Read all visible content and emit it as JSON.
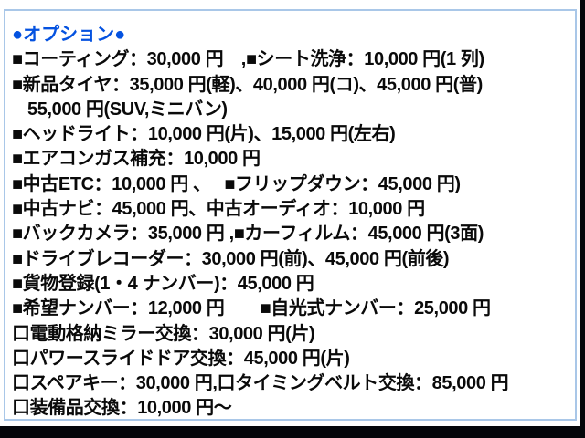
{
  "colors": {
    "header_color": "#0452e0",
    "text_color": "#0a0a0a",
    "border_color": "#a9c7e8",
    "paper_color": "#ffffff",
    "frame_color": "#05060a"
  },
  "header": {
    "text": "●オプション●"
  },
  "lines": [
    "■コーティング：30,000 円　,■シート洗浄：10,000 円(1 列)",
    "■新品タイヤ：35,000 円(軽)、40,000 円(コ)、45,000 円(普)",
    "55,000 円(SUV,ミニバン)",
    "■ヘッドライト：10,000 円(片)、15,000 円(左右)",
    "■エアコンガス補充：10,000 円",
    "■中古ETC：10,000 円 、　 ■フリップダウン：45,000 円)",
    "■中古ナビ：45,000 円、中古オーディオ：10,000 円",
    "■バックカメラ：35,000 円 ,■カーフィルム：45,000 円(3面)",
    "■ドライブレコーダー：30,000 円(前)、45,000 円(前後)",
    "■貨物登録(1・4 ナンバー)：45,000 円",
    "■希望ナンバー：12,000 円　　■自光式ナンバー：25,000 円",
    "口電動格納ミラー交換：30,000 円(片)",
    "口パワースライドドア交換：45,000 円(片)",
    "口スペアキー：30,000 円,口タイミングベルト交換：85,000 円",
    "口装備品交換：10,000 円～"
  ]
}
